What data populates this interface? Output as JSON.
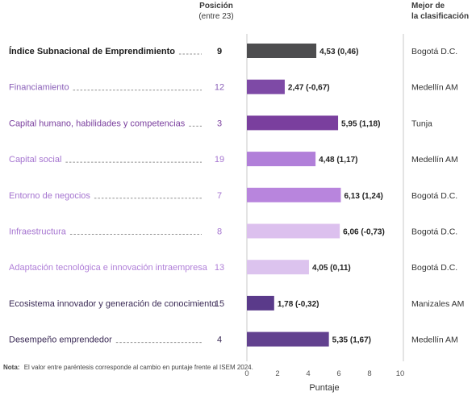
{
  "chart_data": {
    "type": "bar",
    "orientation": "horizontal",
    "header": {
      "rank_title": "Posición",
      "rank_subtitle": "(entre 23)",
      "best_title_line1": "Mejor de",
      "best_title_line2": "la clasificación"
    },
    "categories": [
      "Índice Subnacional de Emprendimiento",
      "Financiamiento",
      "Capital humano, habilidades y competencias",
      "Capital social",
      "Entorno de negocios",
      "Infraestructura",
      "Adaptación tecnológica e innovación intraempresa",
      "Ecosistema innovador y generación de conocimiento",
      "Desempeño emprendedor"
    ],
    "values": [
      4.53,
      2.47,
      5.95,
      4.48,
      6.13,
      6.06,
      4.05,
      1.78,
      5.35
    ],
    "changes": [
      "0,46",
      "-0,67",
      "1,18",
      "1,17",
      "1,24",
      "-0,73",
      "0,11",
      "-0,32",
      "1,67"
    ],
    "value_labels": [
      "4,53 (0,46)",
      "2,47 (-0,67)",
      "5,95 (1,18)",
      "4,48 (1,17)",
      "6,13 (1,24)",
      "6,06 (-0,73)",
      "4,05 (0,11)",
      "1,78 (-0,32)",
      "5,35 (1,67)"
    ],
    "ranks": [
      "9",
      "12",
      "3",
      "19",
      "7",
      "8",
      "13",
      "15",
      "4"
    ],
    "best": [
      "Bogotá D.C.",
      "Medellín AM",
      "Tunja",
      "Medellín AM",
      "Bogotá D.C.",
      "Bogotá D.C.",
      "Bogotá D.C.",
      "Manizales AM",
      "Medellín AM"
    ],
    "bar_colors": [
      "#4d4d4f",
      "#7e4aa6",
      "#7a3f9e",
      "#b17fd9",
      "#b885dd",
      "#dcc0ee",
      "#dcc3ee",
      "#5a3a8a",
      "#62418f"
    ],
    "label_colors": [
      "#1a1a1a",
      "#8a5fb8",
      "#7a3f9e",
      "#a574d0",
      "#a574d0",
      "#a574d0",
      "#b07fd8",
      "#3a2a55",
      "#3a2a55"
    ],
    "xlim": [
      0,
      10
    ],
    "xticks": [
      "0",
      "2",
      "4",
      "6",
      "8",
      "10"
    ],
    "xlabel": "Puntaje",
    "grid": false,
    "note_bold": "Nota:",
    "note": "El valor entre paréntesis corresponde al cambio en puntaje frente al ISEM 2024."
  }
}
